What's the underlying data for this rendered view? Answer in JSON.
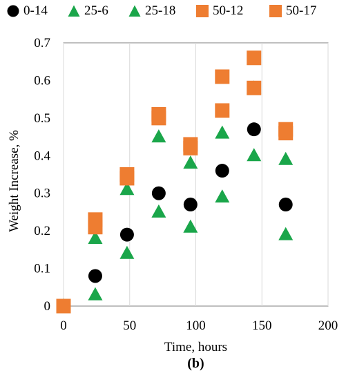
{
  "chart_data": {
    "type": "scatter",
    "xlabel": "Time, hours",
    "ylabel": "Weight Increase, %",
    "panel_label": "(b)",
    "xlim": [
      0,
      200
    ],
    "ylim": [
      0,
      0.7
    ],
    "xticks": [
      0,
      50,
      100,
      150,
      200
    ],
    "yticks": [
      0,
      0.1,
      0.2,
      0.3,
      0.4,
      0.5,
      0.6,
      0.7
    ],
    "grid": "vertical",
    "legend_position": "top",
    "series": [
      {
        "name": "0-14",
        "marker": "circle",
        "color": "#000000",
        "x": [
          0,
          24,
          48,
          72,
          96,
          120,
          144,
          168
        ],
        "y": [
          0,
          0.08,
          0.19,
          0.3,
          0.27,
          0.36,
          0.47,
          0.27
        ]
      },
      {
        "name": "25-6",
        "marker": "triangle",
        "color": "#1aa64a",
        "x": [
          0,
          24,
          48,
          72,
          96,
          120,
          144,
          168
        ],
        "y": [
          0,
          0.18,
          0.31,
          0.45,
          0.38,
          0.46,
          0.58,
          0.39
        ]
      },
      {
        "name": "25-18",
        "marker": "triangle",
        "color": "#1aa64a",
        "x": [
          0,
          24,
          48,
          72,
          96,
          120,
          144,
          168
        ],
        "y": [
          0,
          0.03,
          0.14,
          0.25,
          0.21,
          0.29,
          0.4,
          0.19
        ]
      },
      {
        "name": "50-12",
        "marker": "square",
        "color": "#ee7d31",
        "x": [
          0,
          24,
          48,
          72,
          96,
          120,
          144,
          168
        ],
        "y": [
          0,
          0.23,
          0.35,
          0.51,
          0.43,
          0.61,
          0.66,
          0.47
        ]
      },
      {
        "name": "50-17",
        "marker": "square",
        "color": "#ee7d31",
        "x": [
          0,
          24,
          48,
          72,
          96,
          120,
          144,
          168
        ],
        "y": [
          0,
          0.21,
          0.34,
          0.5,
          0.42,
          0.52,
          0.58,
          0.46
        ]
      }
    ]
  }
}
